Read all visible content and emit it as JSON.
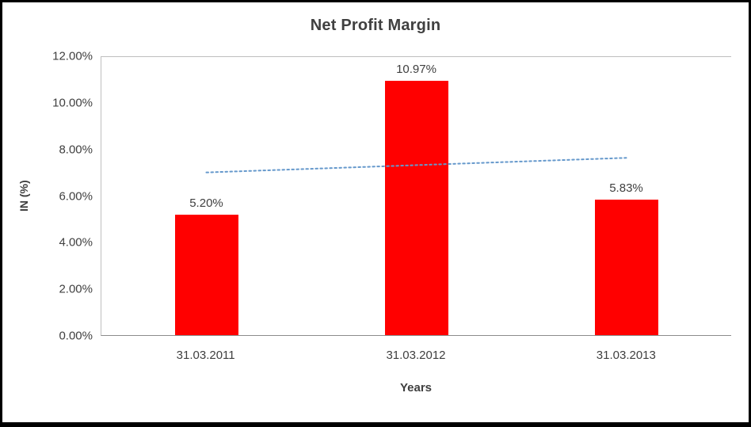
{
  "chart_data": {
    "type": "bar",
    "title": "Net Profit Margin",
    "xlabel": "Years",
    "ylabel": "IN (%)",
    "categories": [
      "31.03.2011",
      "31.03.2012",
      "31.03.2013"
    ],
    "values": [
      5.2,
      10.97,
      5.83
    ],
    "value_labels": [
      "5.20%",
      "10.97%",
      "5.83%"
    ],
    "ylim": [
      0,
      12
    ],
    "y_ticks": [
      {
        "value": 0,
        "label": "0.00%"
      },
      {
        "value": 2,
        "label": "2.00%"
      },
      {
        "value": 4,
        "label": "4.00%"
      },
      {
        "value": 6,
        "label": "6.00%"
      },
      {
        "value": 8,
        "label": "8.00%"
      },
      {
        "value": 10,
        "label": "10.00%"
      },
      {
        "value": 12,
        "label": "12.00%"
      }
    ],
    "bar_color": "#FF0000",
    "grid": "top-line-only",
    "legend": "none",
    "trendline": {
      "type": "linear",
      "start_value": 7.02,
      "end_value": 7.65,
      "color": "#6699CC",
      "style": "dotted"
    }
  }
}
